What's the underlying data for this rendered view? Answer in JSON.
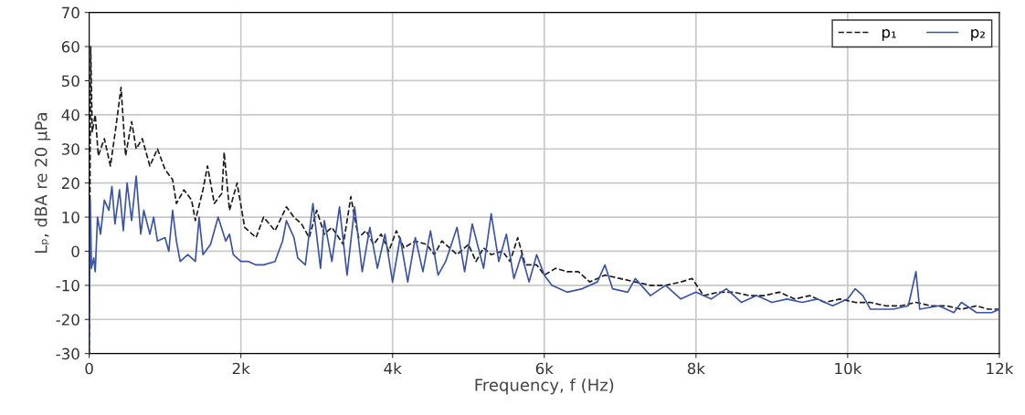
{
  "chart_data": {
    "type": "line",
    "xlabel": "Frequency, f (Hz)",
    "ylabel": "Lₚ, dBA re 20 μPa",
    "xlim": [
      0,
      12000
    ],
    "xticks": [
      {
        "value": 0,
        "label": "0"
      },
      {
        "value": 2000,
        "label": "2k"
      },
      {
        "value": 4000,
        "label": "4k"
      },
      {
        "value": 6000,
        "label": "6k"
      },
      {
        "value": 8000,
        "label": "8k"
      },
      {
        "value": 10000,
        "label": "10k"
      },
      {
        "value": 12000,
        "label": "12k"
      }
    ],
    "ylim": [
      -30,
      70
    ],
    "yticks": [
      -30,
      -20,
      -10,
      0,
      10,
      20,
      30,
      40,
      50,
      60,
      70
    ],
    "grid": true,
    "legend": "top right",
    "series": [
      {
        "name": "p₁",
        "color": "#1a1a1a",
        "line_style": "dashed",
        "x": [
          0,
          20,
          40,
          80,
          120,
          200,
          280,
          350,
          420,
          480,
          560,
          620,
          700,
          800,
          900,
          1000,
          1100,
          1150,
          1250,
          1350,
          1400,
          1500,
          1560,
          1650,
          1750,
          1780,
          1850,
          1950,
          2050,
          2200,
          2300,
          2450,
          2600,
          2700,
          2800,
          2900,
          3000,
          3100,
          3200,
          3350,
          3450,
          3550,
          3650,
          3750,
          3850,
          3950,
          4050,
          4150,
          4300,
          4450,
          4550,
          4650,
          4750,
          4850,
          5000,
          5100,
          5200,
          5300,
          5450,
          5550,
          5650,
          5750,
          5900,
          6000,
          6150,
          6300,
          6450,
          6600,
          6800,
          7000,
          7200,
          7400,
          7600,
          7800,
          7950,
          8100,
          8300,
          8500,
          8700,
          8900,
          9100,
          9300,
          9500,
          9700,
          9900,
          10100,
          10300,
          10500,
          10700,
          10900,
          11100,
          11300,
          11500,
          11700,
          11850,
          12000
        ],
        "values": [
          -30,
          60,
          35,
          40,
          28,
          33,
          25,
          36,
          48,
          28,
          38,
          30,
          33,
          25,
          30,
          24,
          21,
          14,
          18,
          15,
          9,
          18,
          25,
          14,
          17,
          29,
          12,
          20,
          7,
          4,
          10,
          6,
          13,
          10,
          8,
          4,
          12,
          5,
          7,
          2,
          16,
          4,
          6,
          2,
          5,
          0,
          6,
          1,
          3,
          2,
          -1,
          3,
          1,
          -1,
          2,
          -3,
          1,
          -1,
          0,
          -3,
          4,
          -4,
          -4,
          -7,
          -5,
          -6,
          -6,
          -9,
          -7,
          -8,
          -9,
          -10,
          -10,
          -9,
          -8,
          -13,
          -12,
          -12,
          -13,
          -13,
          -12,
          -14,
          -13,
          -15,
          -14,
          -15,
          -15,
          -16,
          -16,
          -15,
          -16,
          -16,
          -17,
          -16,
          -17,
          -17
        ]
      },
      {
        "name": "p₂",
        "color": "#3a53a4",
        "line_style": "solid",
        "x": [
          0,
          15,
          30,
          60,
          80,
          110,
          150,
          200,
          260,
          300,
          340,
          400,
          450,
          500,
          560,
          620,
          680,
          720,
          800,
          850,
          900,
          1000,
          1050,
          1100,
          1150,
          1200,
          1300,
          1400,
          1450,
          1500,
          1600,
          1700,
          1800,
          1850,
          1900,
          2000,
          2100,
          2200,
          2300,
          2450,
          2550,
          2600,
          2700,
          2750,
          2850,
          2950,
          3050,
          3100,
          3200,
          3300,
          3400,
          3500,
          3600,
          3700,
          3800,
          3900,
          4000,
          4100,
          4200,
          4300,
          4400,
          4500,
          4600,
          4700,
          4850,
          4950,
          5050,
          5200,
          5300,
          5400,
          5500,
          5600,
          5700,
          5800,
          5900,
          6000,
          6100,
          6300,
          6500,
          6700,
          6800,
          6900,
          7100,
          7200,
          7400,
          7600,
          7800,
          8000,
          8200,
          8400,
          8600,
          8800,
          9000,
          9200,
          9400,
          9600,
          9800,
          10000,
          10100,
          10200,
          10300,
          10600,
          10800,
          10900,
          10950,
          11200,
          11400,
          11500,
          11700,
          11900,
          12000
        ],
        "values": [
          -30,
          15,
          -5,
          -2,
          -6,
          10,
          5,
          15,
          12,
          19,
          8,
          18,
          6,
          20,
          9,
          22,
          5,
          12,
          5,
          10,
          3,
          4,
          0,
          12,
          3,
          -3,
          -1,
          -3,
          10,
          -1,
          2,
          10,
          3,
          5,
          -1,
          -3,
          -3,
          -4,
          -4,
          -3,
          3,
          9,
          4,
          -2,
          -4,
          14,
          -5,
          9,
          -3,
          13,
          -7,
          13,
          -6,
          7,
          -5,
          5,
          -9,
          4,
          -9,
          4,
          -6,
          6,
          -7,
          -3,
          7,
          -6,
          8,
          -5,
          11,
          -3,
          5,
          -8,
          -1,
          -9,
          -1,
          -7,
          -10,
          -12,
          -11,
          -9,
          -4,
          -11,
          -12,
          -8,
          -13,
          -10,
          -14,
          -12,
          -14,
          -11,
          -15,
          -13,
          -15,
          -14,
          -15,
          -14,
          -16,
          -14,
          -11,
          -13,
          -17,
          -17,
          -16,
          -6,
          -17,
          -16,
          -18,
          -15,
          -18,
          -18,
          -17
        ]
      }
    ]
  }
}
